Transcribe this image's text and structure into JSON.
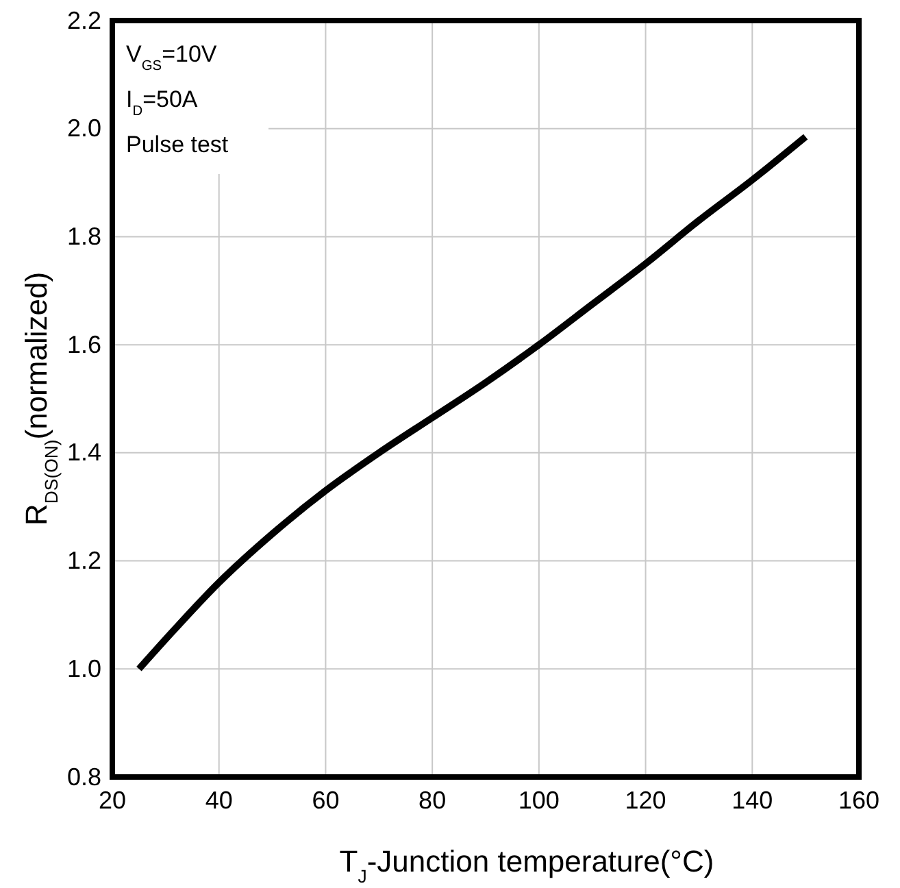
{
  "chart_data": {
    "type": "line",
    "xlabel": "T$_{J}$-Junction temperature(°C)",
    "ylabel": "R$_{DS(ON)}$(normalized)",
    "annotations": [
      "V$_{GS}$=10V",
      "I$_{D}$=50A",
      "Pulse test"
    ],
    "x": [
      25,
      30,
      40,
      50,
      60,
      70,
      80,
      90,
      100,
      110,
      120,
      130,
      140,
      150
    ],
    "series": [
      {
        "color": "#000000",
        "values": [
          1.0,
          1.055,
          1.16,
          1.25,
          1.33,
          1.4,
          1.465,
          1.53,
          1.6,
          1.675,
          1.75,
          1.83,
          1.905,
          1.985
        ]
      }
    ],
    "xlim": [
      20,
      160
    ],
    "xticks": [
      20,
      40,
      60,
      80,
      100,
      120,
      140,
      160
    ],
    "ylim": [
      0.8,
      2.2
    ],
    "yticks": [
      {
        "value": 0.8,
        "label": "0.8"
      },
      {
        "value": 1.0,
        "label": "1.0"
      },
      {
        "value": 1.2,
        "label": "1.2"
      },
      {
        "value": 1.4,
        "label": "1.4"
      },
      {
        "value": 1.6,
        "label": "1.6"
      },
      {
        "value": 1.8,
        "label": "1.8"
      },
      {
        "value": 2.0,
        "label": "2.0"
      },
      {
        "value": 2.2,
        "label": "2.2"
      }
    ],
    "grid": true,
    "marker": "none",
    "line_style": "solid"
  }
}
